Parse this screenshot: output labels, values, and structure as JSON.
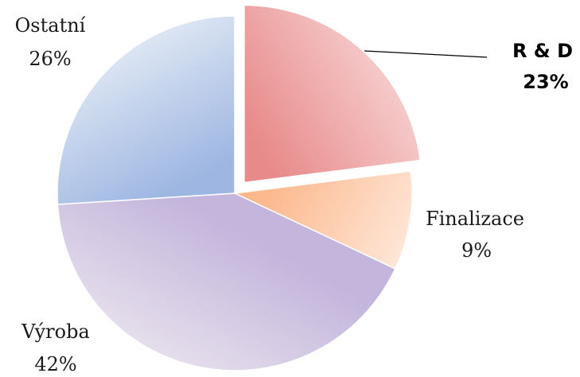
{
  "chart_data": {
    "type": "pie",
    "slices": [
      {
        "label": "R & D",
        "percent_label": "23%",
        "value": 23,
        "color_from": "#e88a8a",
        "color_to": "#f6cccc",
        "exploded": true,
        "bold": true
      },
      {
        "label": "Finalizace",
        "percent_label": "9%",
        "value": 9,
        "color_from": "#fcb98e",
        "color_to": "#fee8da",
        "exploded": false,
        "bold": false
      },
      {
        "label": "Výroba",
        "percent_label": "42%",
        "value": 42,
        "color_from": "#c3b5dc",
        "color_to": "#e6e0ec",
        "exploded": false,
        "bold": false
      },
      {
        "label": "Ostatní",
        "percent_label": "26%",
        "value": 26,
        "color_from": "#9db6e2",
        "color_to": "#dfe7f3",
        "exploded": false,
        "bold": false
      }
    ],
    "start_angle_deg": 0,
    "direction": "clockwise",
    "legend": "none",
    "leader_line_slice": "R & D"
  }
}
